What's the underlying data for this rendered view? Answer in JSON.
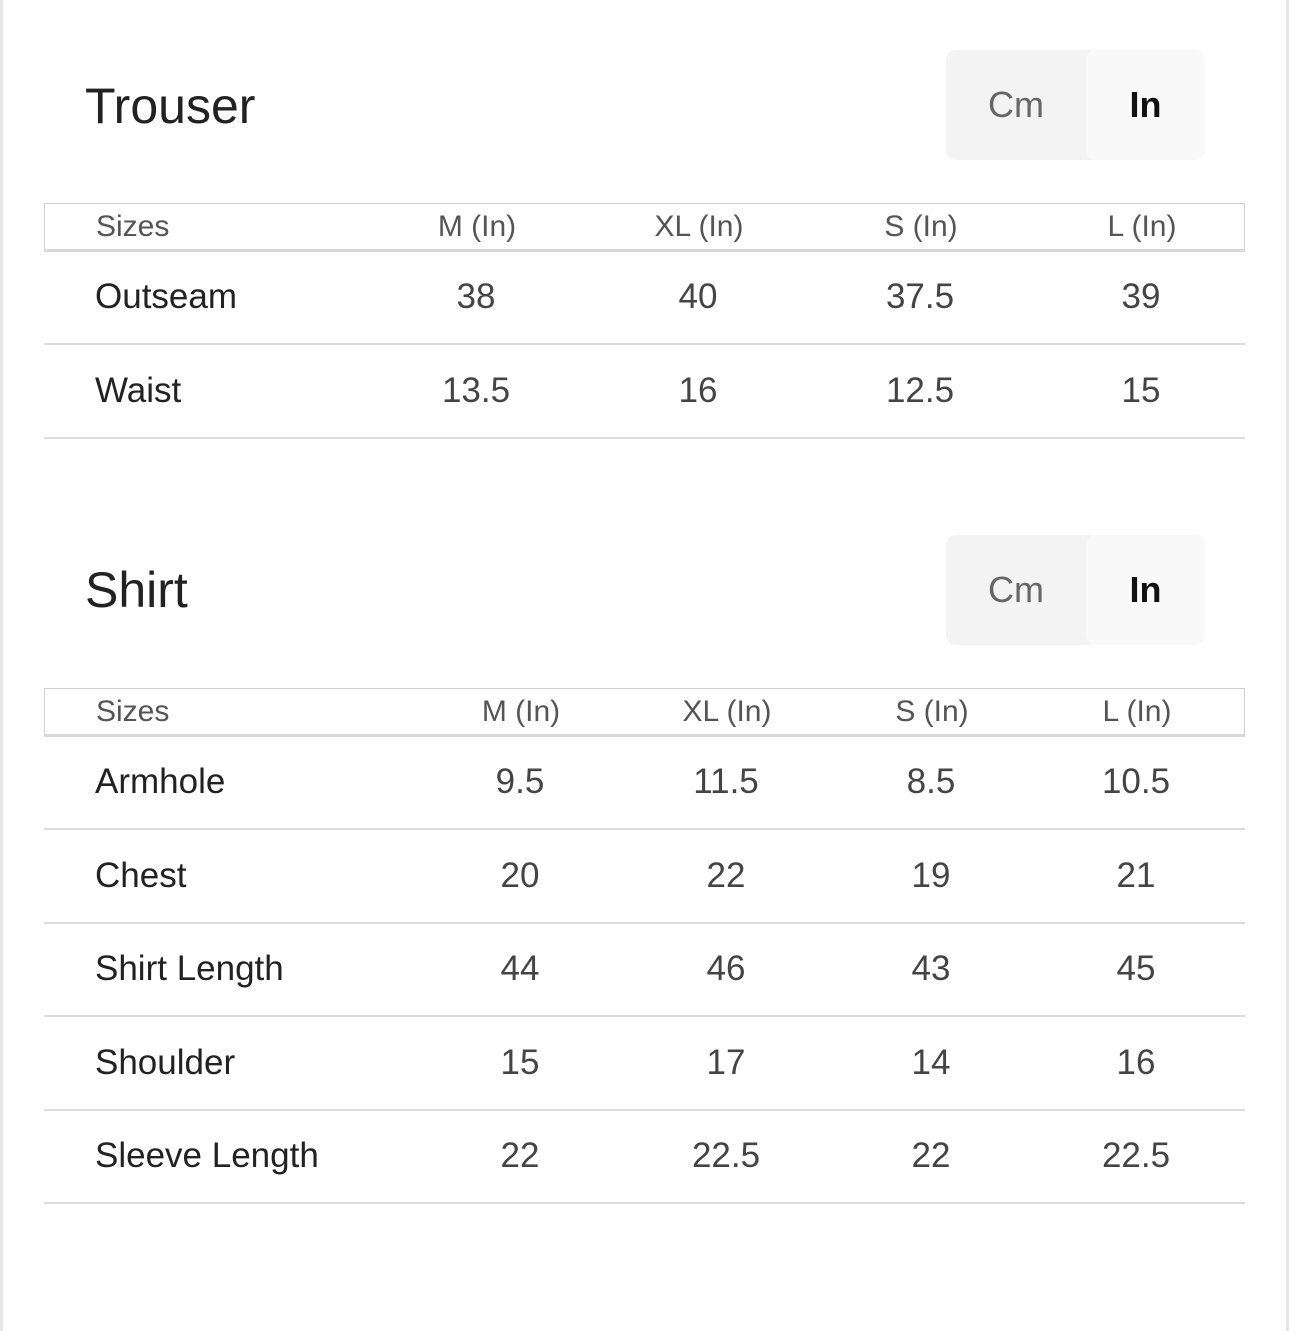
{
  "trouser": {
    "title": "Trouser",
    "toggle": {
      "cm": "Cm",
      "in": "In",
      "selected": "In"
    },
    "headers": [
      "Sizes",
      "M (In)",
      "XL (In)",
      "S (In)",
      "L (In)"
    ],
    "rows": [
      [
        "Outseam",
        "38",
        "40",
        "37.5",
        "39"
      ],
      [
        "Waist",
        "13.5",
        "16",
        "12.5",
        "15"
      ]
    ]
  },
  "shirt": {
    "title": "Shirt",
    "toggle": {
      "cm": "Cm",
      "in": "In",
      "selected": "In"
    },
    "headers": [
      "Sizes",
      "M (In)",
      "XL (In)",
      "S (In)",
      "L (In)"
    ],
    "rows": [
      [
        "Armhole",
        "9.5",
        "11.5",
        "8.5",
        "10.5"
      ],
      [
        "Chest",
        "20",
        "22",
        "19",
        "21"
      ],
      [
        "Shirt Length",
        "44",
        "46",
        "43",
        "45"
      ],
      [
        "Shoulder",
        "15",
        "17",
        "14",
        "16"
      ],
      [
        "Sleeve Length",
        "22",
        "22.5",
        "22",
        "22.5"
      ]
    ]
  }
}
